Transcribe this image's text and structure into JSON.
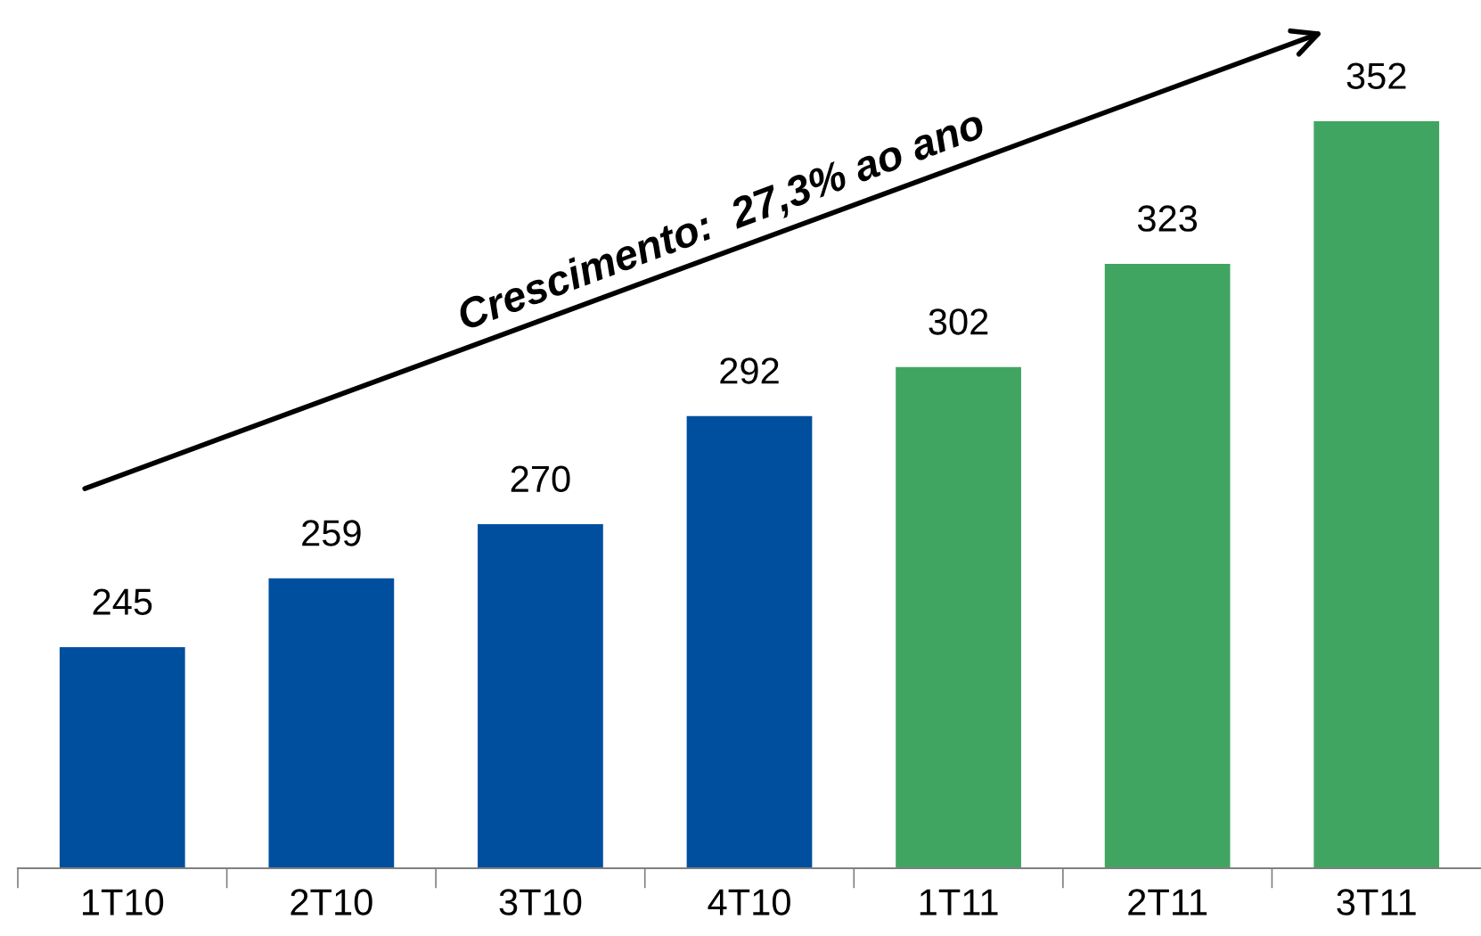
{
  "chart_data": {
    "type": "bar",
    "categories": [
      "1T10",
      "2T10",
      "3T10",
      "4T10",
      "1T11",
      "2T11",
      "3T11"
    ],
    "values": [
      245,
      259,
      270,
      292,
      302,
      323,
      352
    ],
    "colors": [
      "#004f9f",
      "#004f9f",
      "#004f9f",
      "#004f9f",
      "#41a562",
      "#41a562",
      "#41a562"
    ],
    "ylim": [
      200,
      352
    ],
    "data_labels": true,
    "grid": false,
    "annotations": [
      "Crescimento:  27,3% ao ano"
    ]
  }
}
